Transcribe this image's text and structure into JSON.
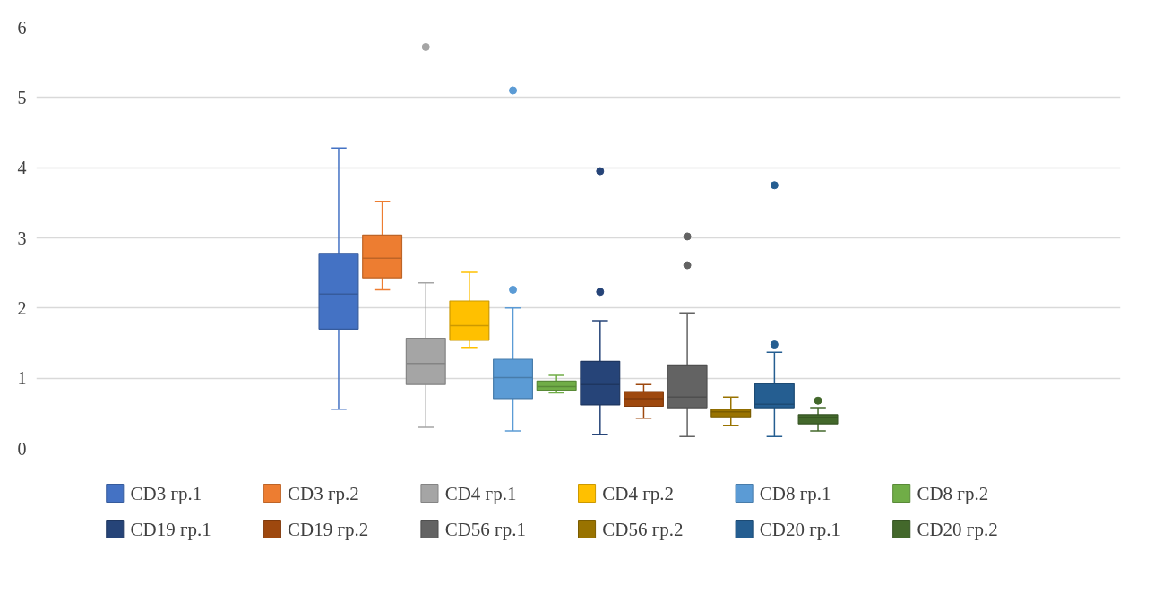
{
  "chart_data": {
    "type": "box",
    "categories": [
      null
    ],
    "ylim": [
      0,
      6
    ],
    "yticks": [
      0,
      1,
      2,
      3,
      4,
      5,
      6
    ],
    "grid": "y",
    "legend": "bottom",
    "tick_labels": "y",
    "series": [
      {
        "name": "CD3 гр.1",
        "color": "#4472c4",
        "boxes": [
          {
            "low": 0.56,
            "q1": 1.7,
            "median": 2.2,
            "q3": 2.78,
            "high": 4.28
          }
        ]
      },
      {
        "name": "CD3 гр.2",
        "color": "#ed7d31",
        "boxes": [
          {
            "low": 2.26,
            "q1": 2.43,
            "median": 2.71,
            "q3": 3.04,
            "high": 3.52
          }
        ]
      },
      {
        "name": "CD4 гр.1",
        "color": "#a5a5a5",
        "boxes": [
          {
            "low": 0.3,
            "q1": 0.91,
            "median": 1.21,
            "q3": 1.57,
            "high": 2.36,
            "outliers": [
              5.72
            ]
          }
        ]
      },
      {
        "name": "CD4 гр.2",
        "color": "#ffc000",
        "boxes": [
          {
            "low": 1.44,
            "q1": 1.54,
            "median": 1.75,
            "q3": 2.1,
            "high": 2.51
          }
        ]
      },
      {
        "name": "CD8 гр.1",
        "color": "#5b9bd5",
        "boxes": [
          {
            "low": 0.25,
            "q1": 0.71,
            "median": 1.01,
            "q3": 1.27,
            "high": 2.0,
            "outliers": [
              2.26,
              5.1
            ]
          }
        ]
      },
      {
        "name": "CD8 гр.2",
        "color": "#70ad47",
        "boxes": [
          {
            "low": 0.79,
            "q1": 0.83,
            "median": 0.88,
            "q3": 0.96,
            "high": 1.04
          }
        ]
      },
      {
        "name": "CD19 гр.1",
        "color": "#264478",
        "boxes": [
          {
            "low": 0.2,
            "q1": 0.62,
            "median": 0.91,
            "q3": 1.24,
            "high": 1.82,
            "outliers": [
              2.23,
              3.95
            ]
          }
        ]
      },
      {
        "name": "CD19 гр.2",
        "color": "#9e480e",
        "boxes": [
          {
            "low": 0.43,
            "q1": 0.6,
            "median": 0.71,
            "q3": 0.81,
            "high": 0.91
          }
        ]
      },
      {
        "name": "CD56 гр.1",
        "color": "#636363",
        "boxes": [
          {
            "low": 0.17,
            "q1": 0.58,
            "median": 0.73,
            "q3": 1.19,
            "high": 1.93,
            "outliers": [
              2.61,
              3.02
            ]
          }
        ]
      },
      {
        "name": "CD56 гр.2",
        "color": "#997300",
        "boxes": [
          {
            "low": 0.33,
            "q1": 0.45,
            "median": 0.52,
            "q3": 0.56,
            "high": 0.73
          }
        ]
      },
      {
        "name": "CD20 гр.1",
        "color": "#255e91",
        "boxes": [
          {
            "low": 0.17,
            "q1": 0.58,
            "median": 0.63,
            "q3": 0.92,
            "high": 1.37,
            "outliers": [
              1.48,
              3.75
            ]
          }
        ]
      },
      {
        "name": "CD20 гр.2",
        "color": "#43682b",
        "boxes": [
          {
            "low": 0.25,
            "q1": 0.35,
            "median": 0.44,
            "q3": 0.48,
            "high": 0.58,
            "outliers": [
              0.68
            ]
          }
        ]
      }
    ]
  }
}
